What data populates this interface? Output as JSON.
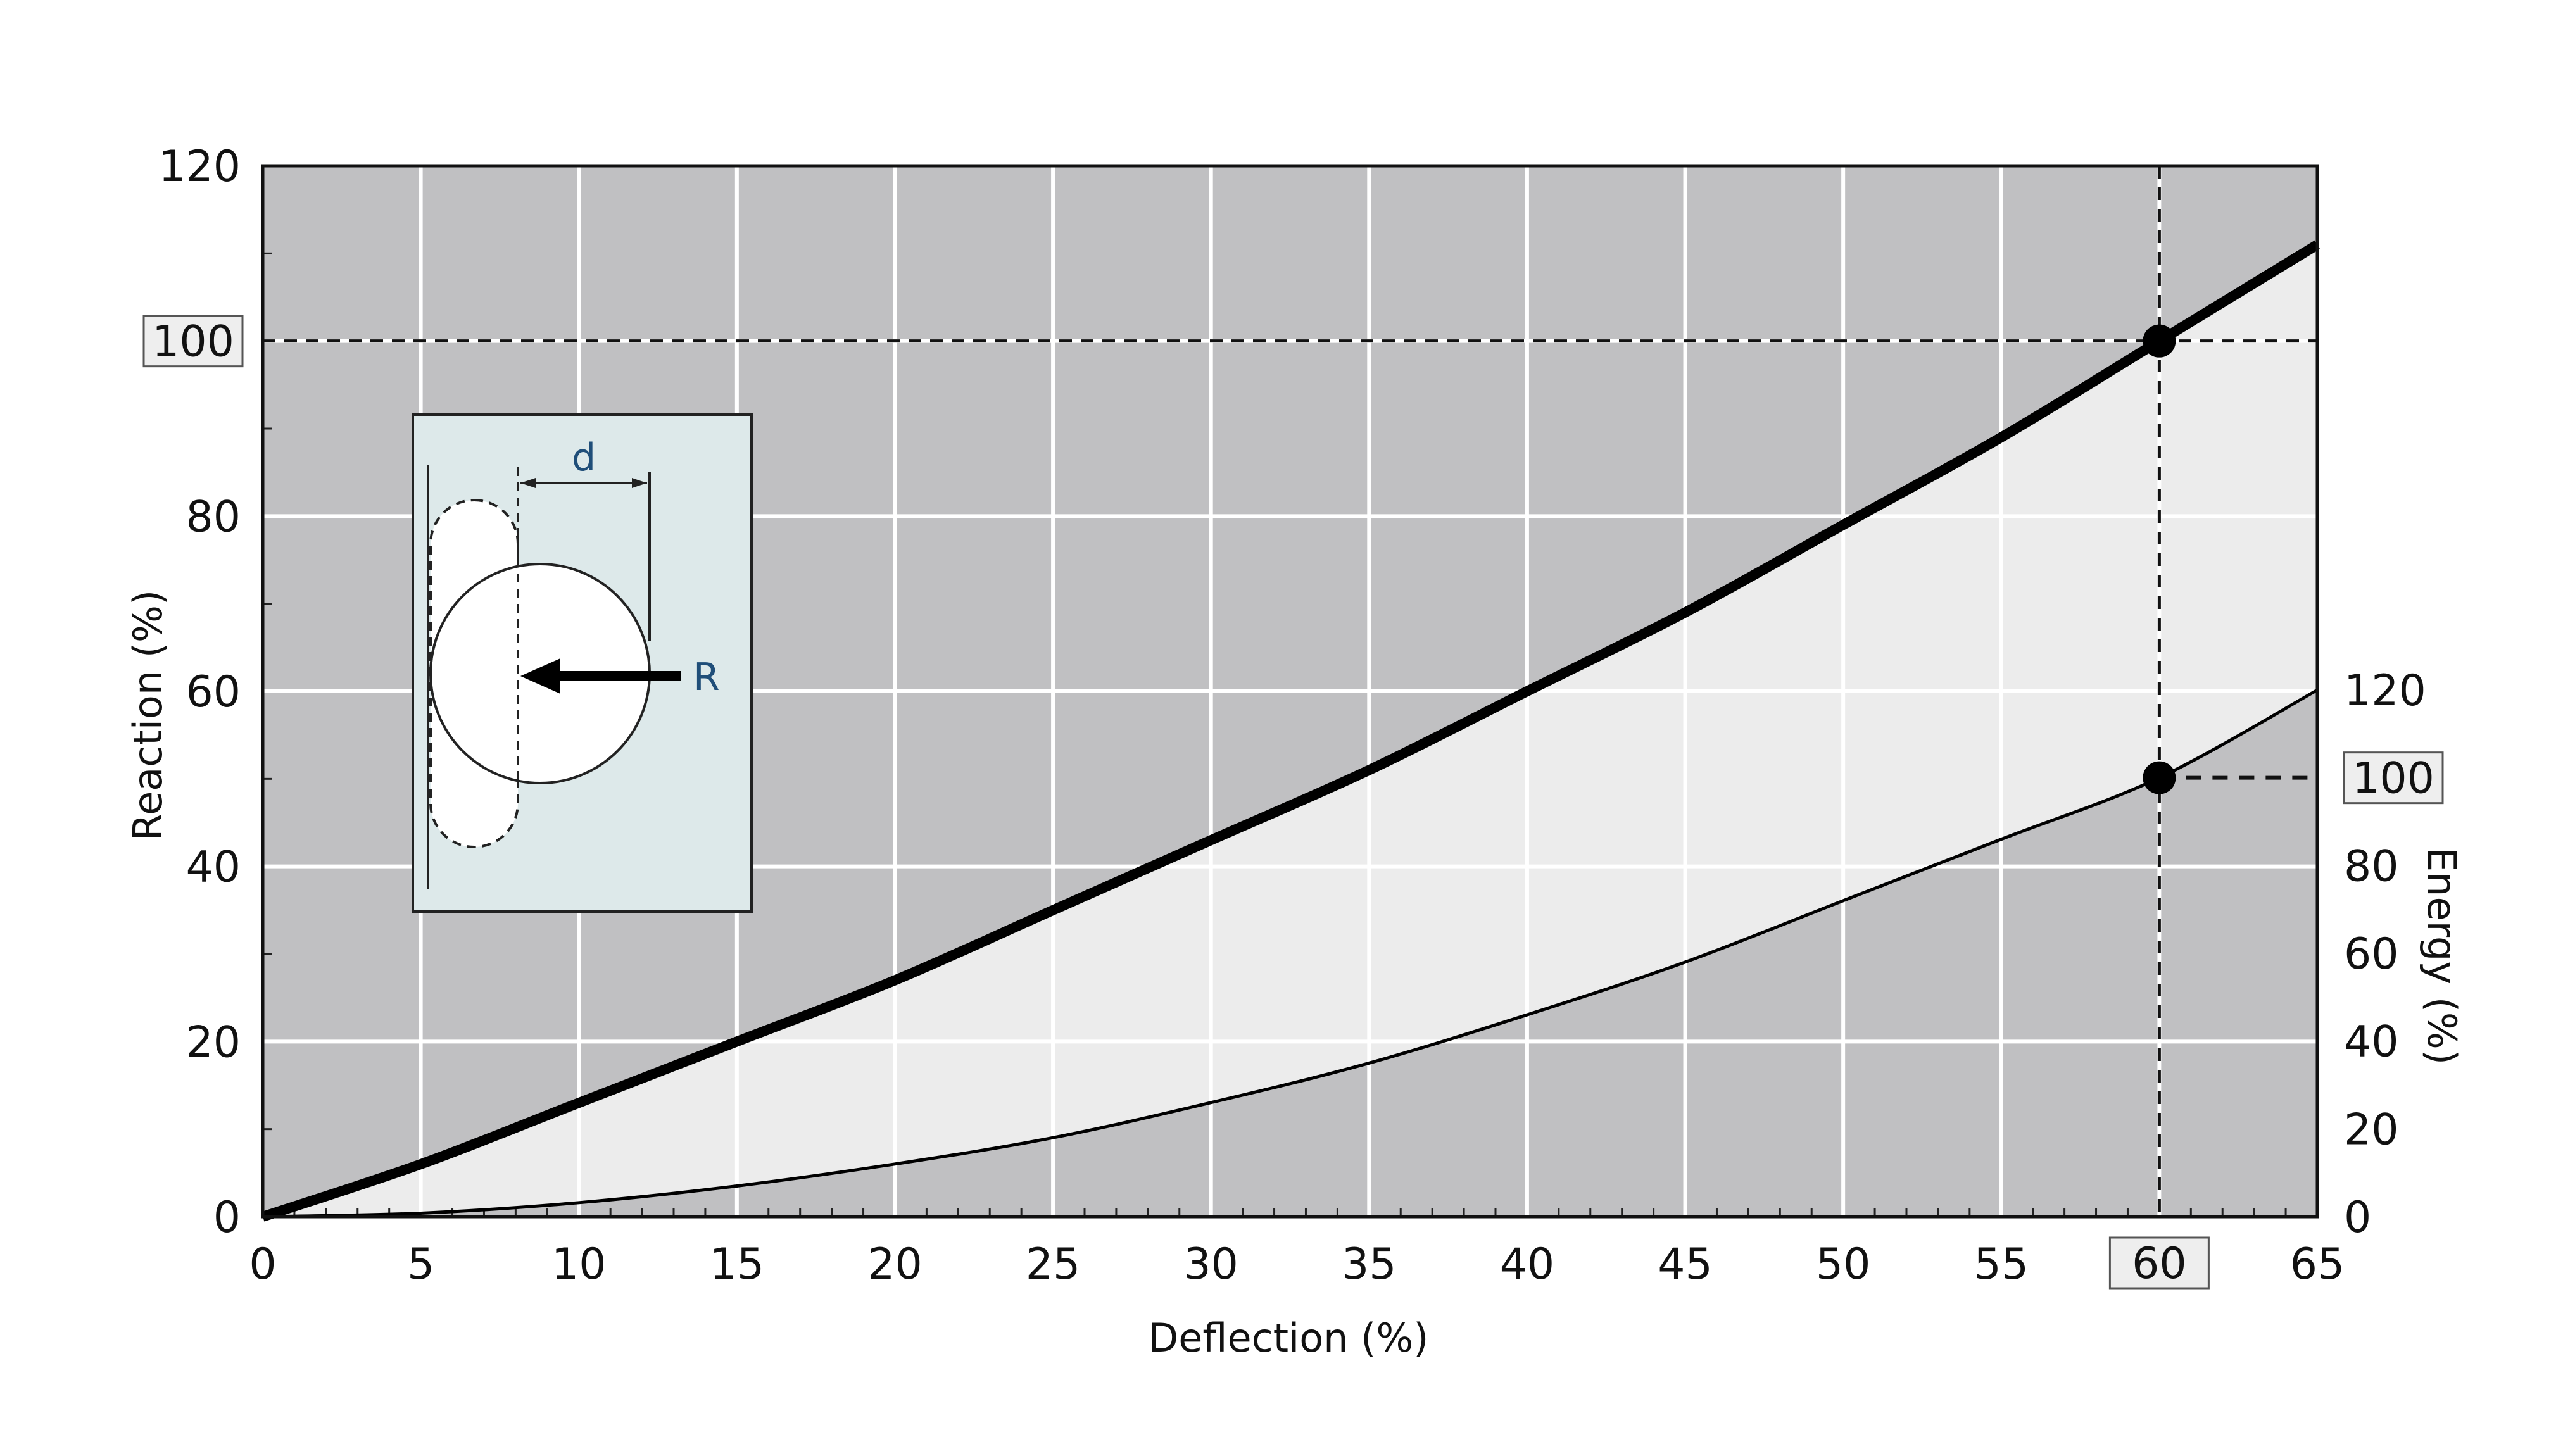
{
  "chart_data": {
    "type": "line",
    "xlabel": "Deflection (%)",
    "ylabel": "Reaction (%)",
    "y2label": "Energy (%)",
    "xlim": [
      0,
      65
    ],
    "ylim": [
      0,
      120
    ],
    "y2lim": [
      0,
      120
    ],
    "x_ticks": [
      "0",
      "5",
      "10",
      "15",
      "20",
      "25",
      "30",
      "35",
      "40",
      "45",
      "50",
      "55",
      "60",
      "65"
    ],
    "y_ticks": [
      "0",
      "20",
      "40",
      "60",
      "80",
      "100",
      "120"
    ],
    "y2_ticks": [
      "0",
      "20",
      "40",
      "60",
      "80",
      "100",
      "120"
    ],
    "grid": true,
    "highlights": {
      "reaction": "100",
      "energy": "100",
      "deflection": "60"
    },
    "series": [
      {
        "axis": "left",
        "line": "thick",
        "x": [
          0,
          5,
          10,
          15,
          20,
          25,
          30,
          35,
          40,
          45,
          50,
          55,
          60,
          65
        ],
        "y": [
          0,
          6,
          13,
          20,
          27,
          35,
          43,
          51,
          60,
          69,
          79,
          89,
          100,
          111
        ]
      },
      {
        "axis": "right",
        "line": "thin",
        "x": [
          0,
          5,
          10,
          15,
          20,
          25,
          30,
          35,
          40,
          45,
          50,
          55,
          60,
          65
        ],
        "y": [
          0,
          0.8,
          3.2,
          7,
          12,
          18,
          26,
          35,
          46,
          58,
          72,
          86,
          100,
          120
        ]
      }
    ],
    "markers": [
      {
        "axis": "left",
        "x": 60,
        "y": 100
      },
      {
        "axis": "right",
        "x": 60,
        "y": 100
      }
    ],
    "inset": {
      "dimension_label": "d",
      "force_label": "R"
    }
  }
}
